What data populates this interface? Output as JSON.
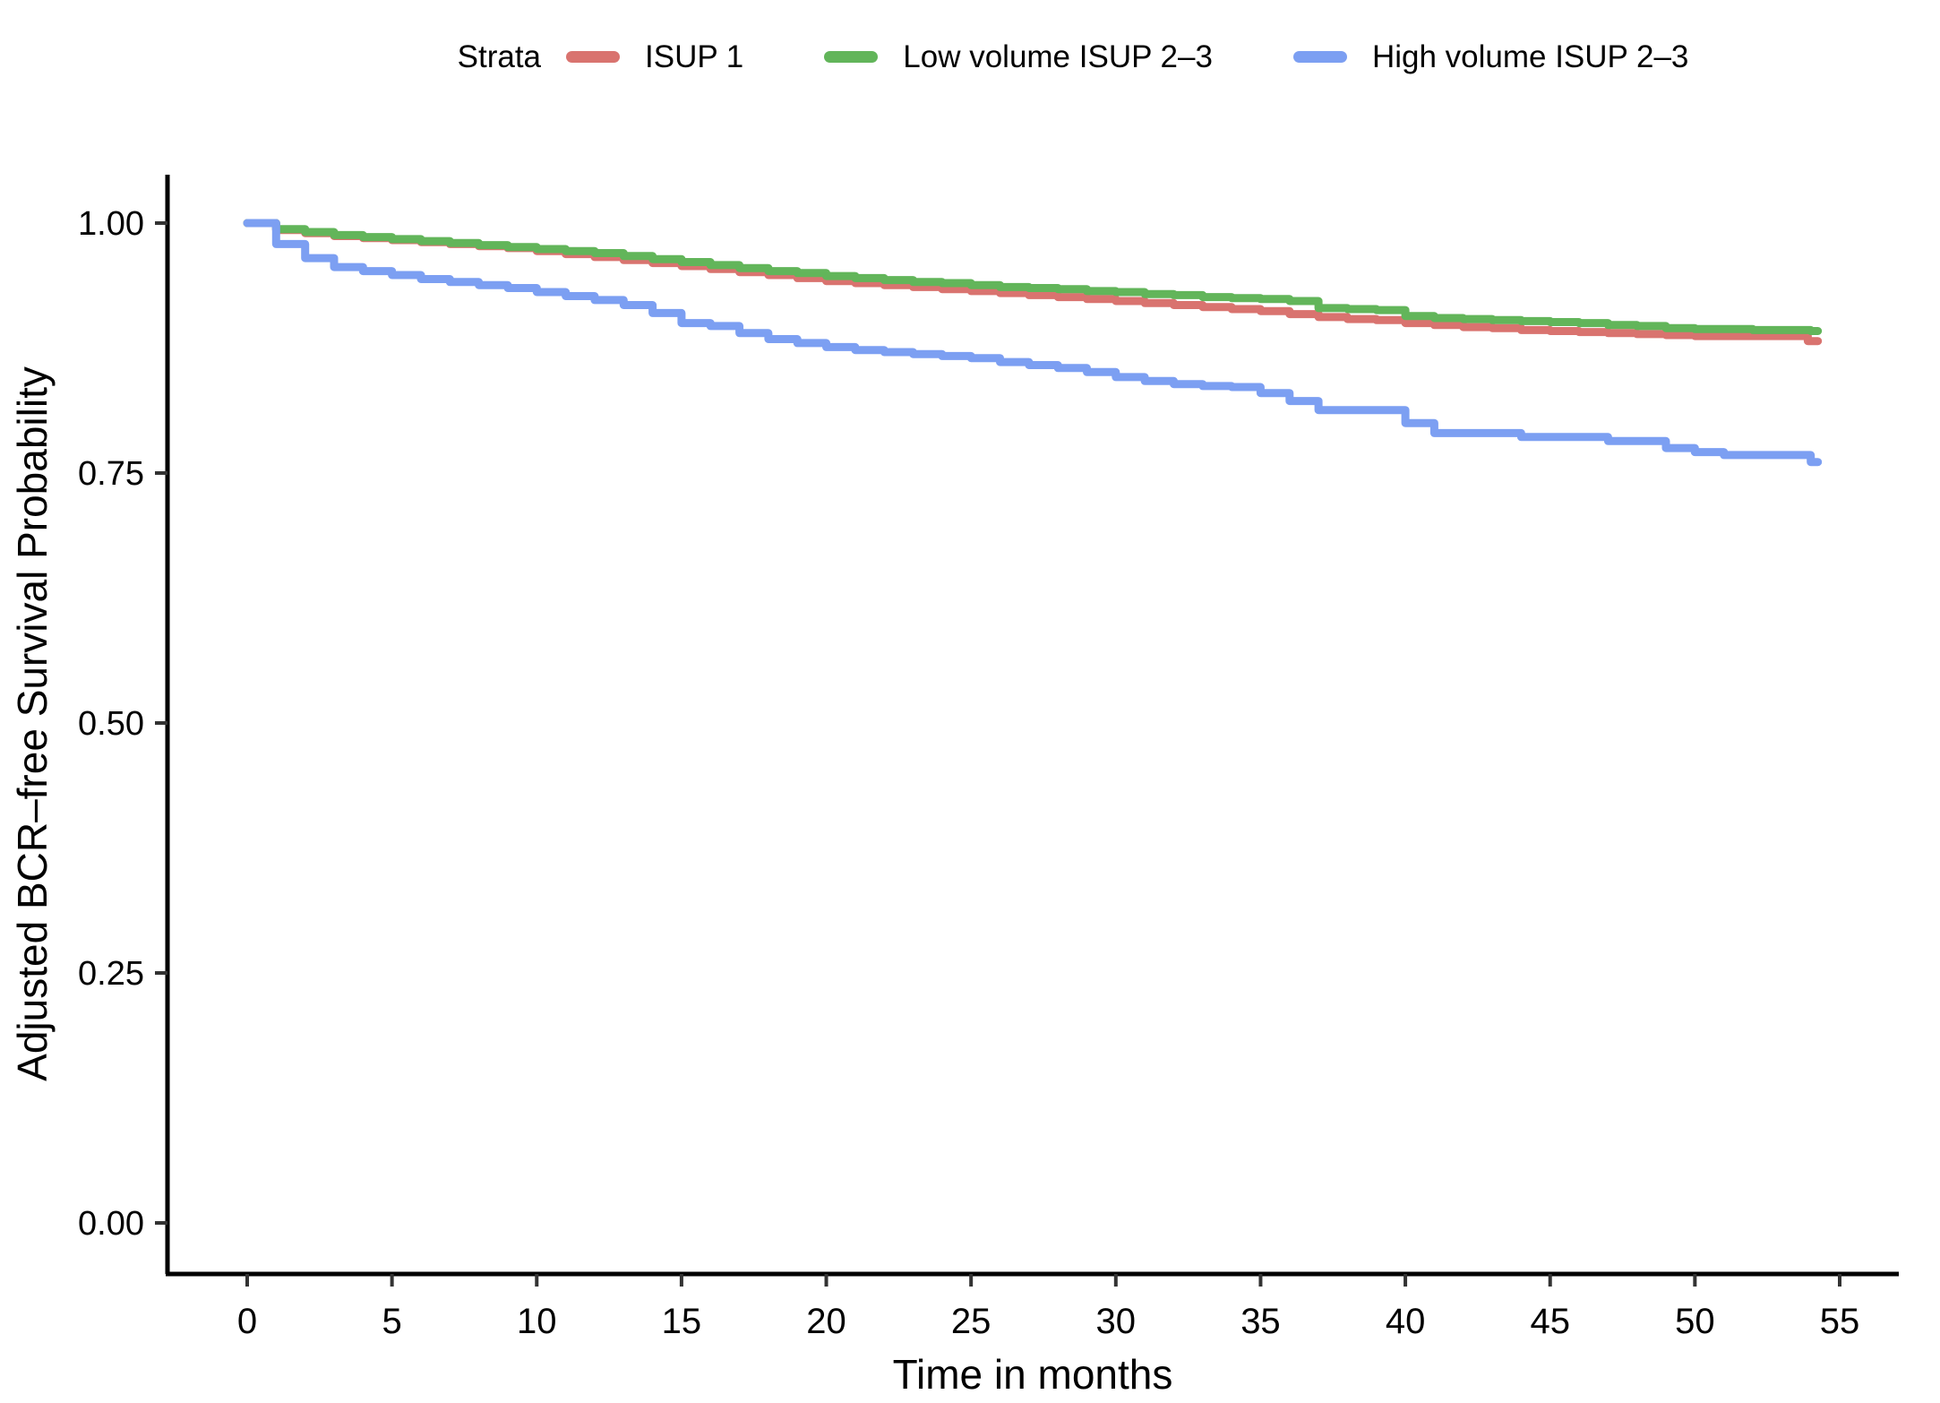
{
  "figure": {
    "background_color": "#ffffff",
    "axis_color": "#000000",
    "tick_color": "#333333",
    "text_color": "#000000"
  },
  "chart_data": {
    "type": "line",
    "subtype": "step-survival-km",
    "title": "",
    "xlabel": "Time in months",
    "ylabel": "Adjusted BCR–free Survival Probability",
    "legend_title": "Strata",
    "legend_position": "top",
    "grid": false,
    "xlim": [
      -2.75,
      57
    ],
    "ylim": [
      -0.05,
      1.05
    ],
    "xticks": [
      0,
      5,
      10,
      15,
      20,
      25,
      30,
      35,
      40,
      45,
      50,
      55
    ],
    "xtick_labels": [
      "0",
      "5",
      "10",
      "15",
      "20",
      "25",
      "30",
      "35",
      "40",
      "45",
      "50",
      "55"
    ],
    "yticks": [
      1.0,
      0.75,
      0.5,
      0.25,
      0.0
    ],
    "ytick_labels": [
      "1.00",
      "0.75",
      "0.50",
      "0.25",
      "0.00"
    ],
    "curve_end_time": 54.25,
    "series": [
      {
        "id": "isup-1",
        "name": "ISUP 1",
        "color": "#D9736F",
        "points": [
          [
            0,
            1.0
          ],
          [
            1,
            0.993
          ],
          [
            2,
            0.99
          ],
          [
            3,
            0.987
          ],
          [
            4,
            0.985
          ],
          [
            5,
            0.983
          ],
          [
            6,
            0.981
          ],
          [
            7,
            0.979
          ],
          [
            8,
            0.977
          ],
          [
            9,
            0.975
          ],
          [
            10,
            0.972
          ],
          [
            11,
            0.969
          ],
          [
            12,
            0.966
          ],
          [
            13,
            0.963
          ],
          [
            14,
            0.96
          ],
          [
            15,
            0.957
          ],
          [
            16,
            0.954
          ],
          [
            17,
            0.951
          ],
          [
            18,
            0.948
          ],
          [
            19,
            0.945
          ],
          [
            20,
            0.942
          ],
          [
            21,
            0.94
          ],
          [
            22,
            0.938
          ],
          [
            23,
            0.936
          ],
          [
            24,
            0.934
          ],
          [
            25,
            0.932
          ],
          [
            26,
            0.93
          ],
          [
            27,
            0.928
          ],
          [
            28,
            0.926
          ],
          [
            29,
            0.924
          ],
          [
            30,
            0.922
          ],
          [
            31,
            0.92
          ],
          [
            32,
            0.918
          ],
          [
            33,
            0.916
          ],
          [
            34,
            0.914
          ],
          [
            35,
            0.912
          ],
          [
            36,
            0.909
          ],
          [
            37,
            0.906
          ],
          [
            38,
            0.904
          ],
          [
            39,
            0.903
          ],
          [
            40,
            0.9
          ],
          [
            41,
            0.898
          ],
          [
            42,
            0.896
          ],
          [
            43,
            0.895
          ],
          [
            44,
            0.893
          ],
          [
            45,
            0.892
          ],
          [
            46,
            0.891
          ],
          [
            47,
            0.89
          ],
          [
            48,
            0.889
          ],
          [
            49,
            0.888
          ],
          [
            50,
            0.887
          ],
          [
            53.9,
            0.882
          ]
        ]
      },
      {
        "id": "low-volume-isup-2-3",
        "name": "Low volume ISUP 2–3",
        "color": "#62B55A",
        "points": [
          [
            0,
            1.0
          ],
          [
            1,
            0.994
          ],
          [
            2,
            0.991
          ],
          [
            3,
            0.988
          ],
          [
            4,
            0.986
          ],
          [
            5,
            0.984
          ],
          [
            6,
            0.982
          ],
          [
            7,
            0.98
          ],
          [
            8,
            0.978
          ],
          [
            9,
            0.976
          ],
          [
            10,
            0.974
          ],
          [
            11,
            0.972
          ],
          [
            12,
            0.97
          ],
          [
            13,
            0.967
          ],
          [
            14,
            0.964
          ],
          [
            15,
            0.961
          ],
          [
            16,
            0.958
          ],
          [
            17,
            0.955
          ],
          [
            18,
            0.952
          ],
          [
            19,
            0.95
          ],
          [
            20,
            0.947
          ],
          [
            21,
            0.945
          ],
          [
            22,
            0.943
          ],
          [
            23,
            0.941
          ],
          [
            24,
            0.94
          ],
          [
            25,
            0.938
          ],
          [
            26,
            0.936
          ],
          [
            27,
            0.935
          ],
          [
            28,
            0.934
          ],
          [
            29,
            0.932
          ],
          [
            30,
            0.931
          ],
          [
            31,
            0.929
          ],
          [
            32,
            0.928
          ],
          [
            33,
            0.926
          ],
          [
            34,
            0.925
          ],
          [
            35,
            0.924
          ],
          [
            36,
            0.922
          ],
          [
            37,
            0.915
          ],
          [
            38,
            0.914
          ],
          [
            39,
            0.913
          ],
          [
            40,
            0.907
          ],
          [
            41,
            0.905
          ],
          [
            42,
            0.904
          ],
          [
            43,
            0.903
          ],
          [
            44,
            0.902
          ],
          [
            45,
            0.901
          ],
          [
            46,
            0.9
          ],
          [
            47,
            0.898
          ],
          [
            48,
            0.897
          ],
          [
            49,
            0.895
          ],
          [
            50,
            0.894
          ],
          [
            52,
            0.893
          ],
          [
            54,
            0.892
          ]
        ]
      },
      {
        "id": "high-volume-isup-2-3",
        "name": "High volume ISUP 2–3",
        "color": "#7C9FF2",
        "points": [
          [
            0,
            1.0
          ],
          [
            1,
            0.979
          ],
          [
            2,
            0.965
          ],
          [
            3,
            0.956
          ],
          [
            4,
            0.952
          ],
          [
            5,
            0.948
          ],
          [
            6,
            0.944
          ],
          [
            7,
            0.941
          ],
          [
            8,
            0.938
          ],
          [
            9,
            0.935
          ],
          [
            10,
            0.931
          ],
          [
            11,
            0.927
          ],
          [
            12,
            0.923
          ],
          [
            13,
            0.918
          ],
          [
            14,
            0.91
          ],
          [
            15,
            0.9
          ],
          [
            16,
            0.897
          ],
          [
            17,
            0.89
          ],
          [
            18,
            0.884
          ],
          [
            19,
            0.88
          ],
          [
            20,
            0.876
          ],
          [
            21,
            0.873
          ],
          [
            22,
            0.871
          ],
          [
            23,
            0.869
          ],
          [
            24,
            0.867
          ],
          [
            25,
            0.865
          ],
          [
            26,
            0.861
          ],
          [
            27,
            0.858
          ],
          [
            28,
            0.855
          ],
          [
            29,
            0.851
          ],
          [
            30,
            0.846
          ],
          [
            31,
            0.842
          ],
          [
            32,
            0.839
          ],
          [
            33,
            0.837
          ],
          [
            34,
            0.836
          ],
          [
            35,
            0.83
          ],
          [
            36,
            0.822
          ],
          [
            37,
            0.813
          ],
          [
            40,
            0.8
          ],
          [
            41,
            0.79
          ],
          [
            44,
            0.786
          ],
          [
            47,
            0.782
          ],
          [
            49,
            0.775
          ],
          [
            50,
            0.771
          ],
          [
            51,
            0.768
          ],
          [
            54,
            0.761
          ]
        ]
      }
    ]
  }
}
